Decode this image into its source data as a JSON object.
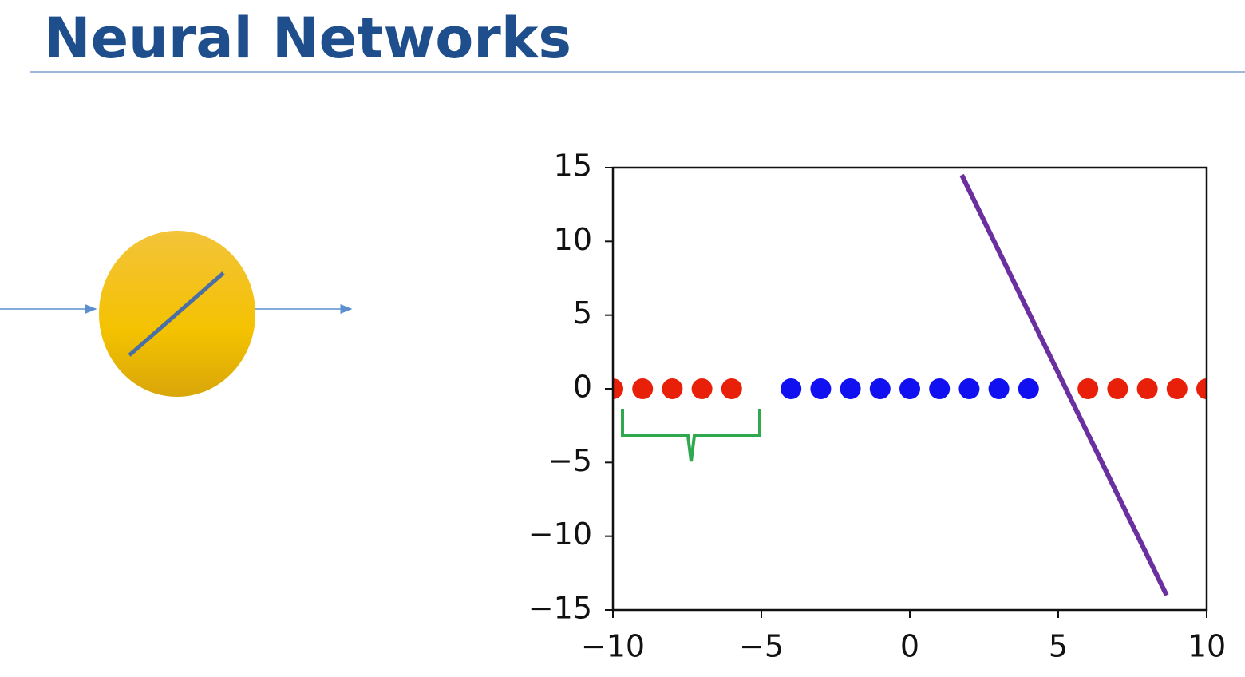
{
  "chart_data": {
    "type": "scatter",
    "title": "Neural Networks",
    "xlim": [
      -10,
      10
    ],
    "ylim": [
      -15,
      15
    ],
    "xticks": [
      {
        "value": -10,
        "label": "−10"
      },
      {
        "value": -5,
        "label": "−5"
      },
      0,
      5,
      10
    ],
    "yticks": [
      {
        "value": -15,
        "label": "−15"
      },
      {
        "value": -10,
        "label": "−10"
      },
      {
        "value": -5,
        "label": "−5"
      },
      0,
      5,
      10,
      15
    ],
    "series": [
      {
        "color": "#e8200a",
        "style": "marker",
        "x": [
          -10,
          -9,
          -8,
          -7,
          -6
        ],
        "values": [
          0,
          0,
          0,
          0,
          0
        ]
      },
      {
        "color": "#1010f0",
        "style": "marker",
        "x": [
          -4,
          -3,
          -2,
          -1,
          0,
          1,
          2,
          3,
          4
        ],
        "values": [
          0,
          0,
          0,
          0,
          0,
          0,
          0,
          0,
          0
        ]
      },
      {
        "color": "#e8200a",
        "style": "marker",
        "x": [
          6,
          7,
          8,
          9,
          10
        ],
        "values": [
          0,
          0,
          0,
          0,
          0
        ]
      },
      {
        "color": "#6a30a0",
        "style": "line",
        "x": [
          1.75,
          8.65
        ],
        "values": [
          14.5,
          -14
        ]
      }
    ]
  }
}
